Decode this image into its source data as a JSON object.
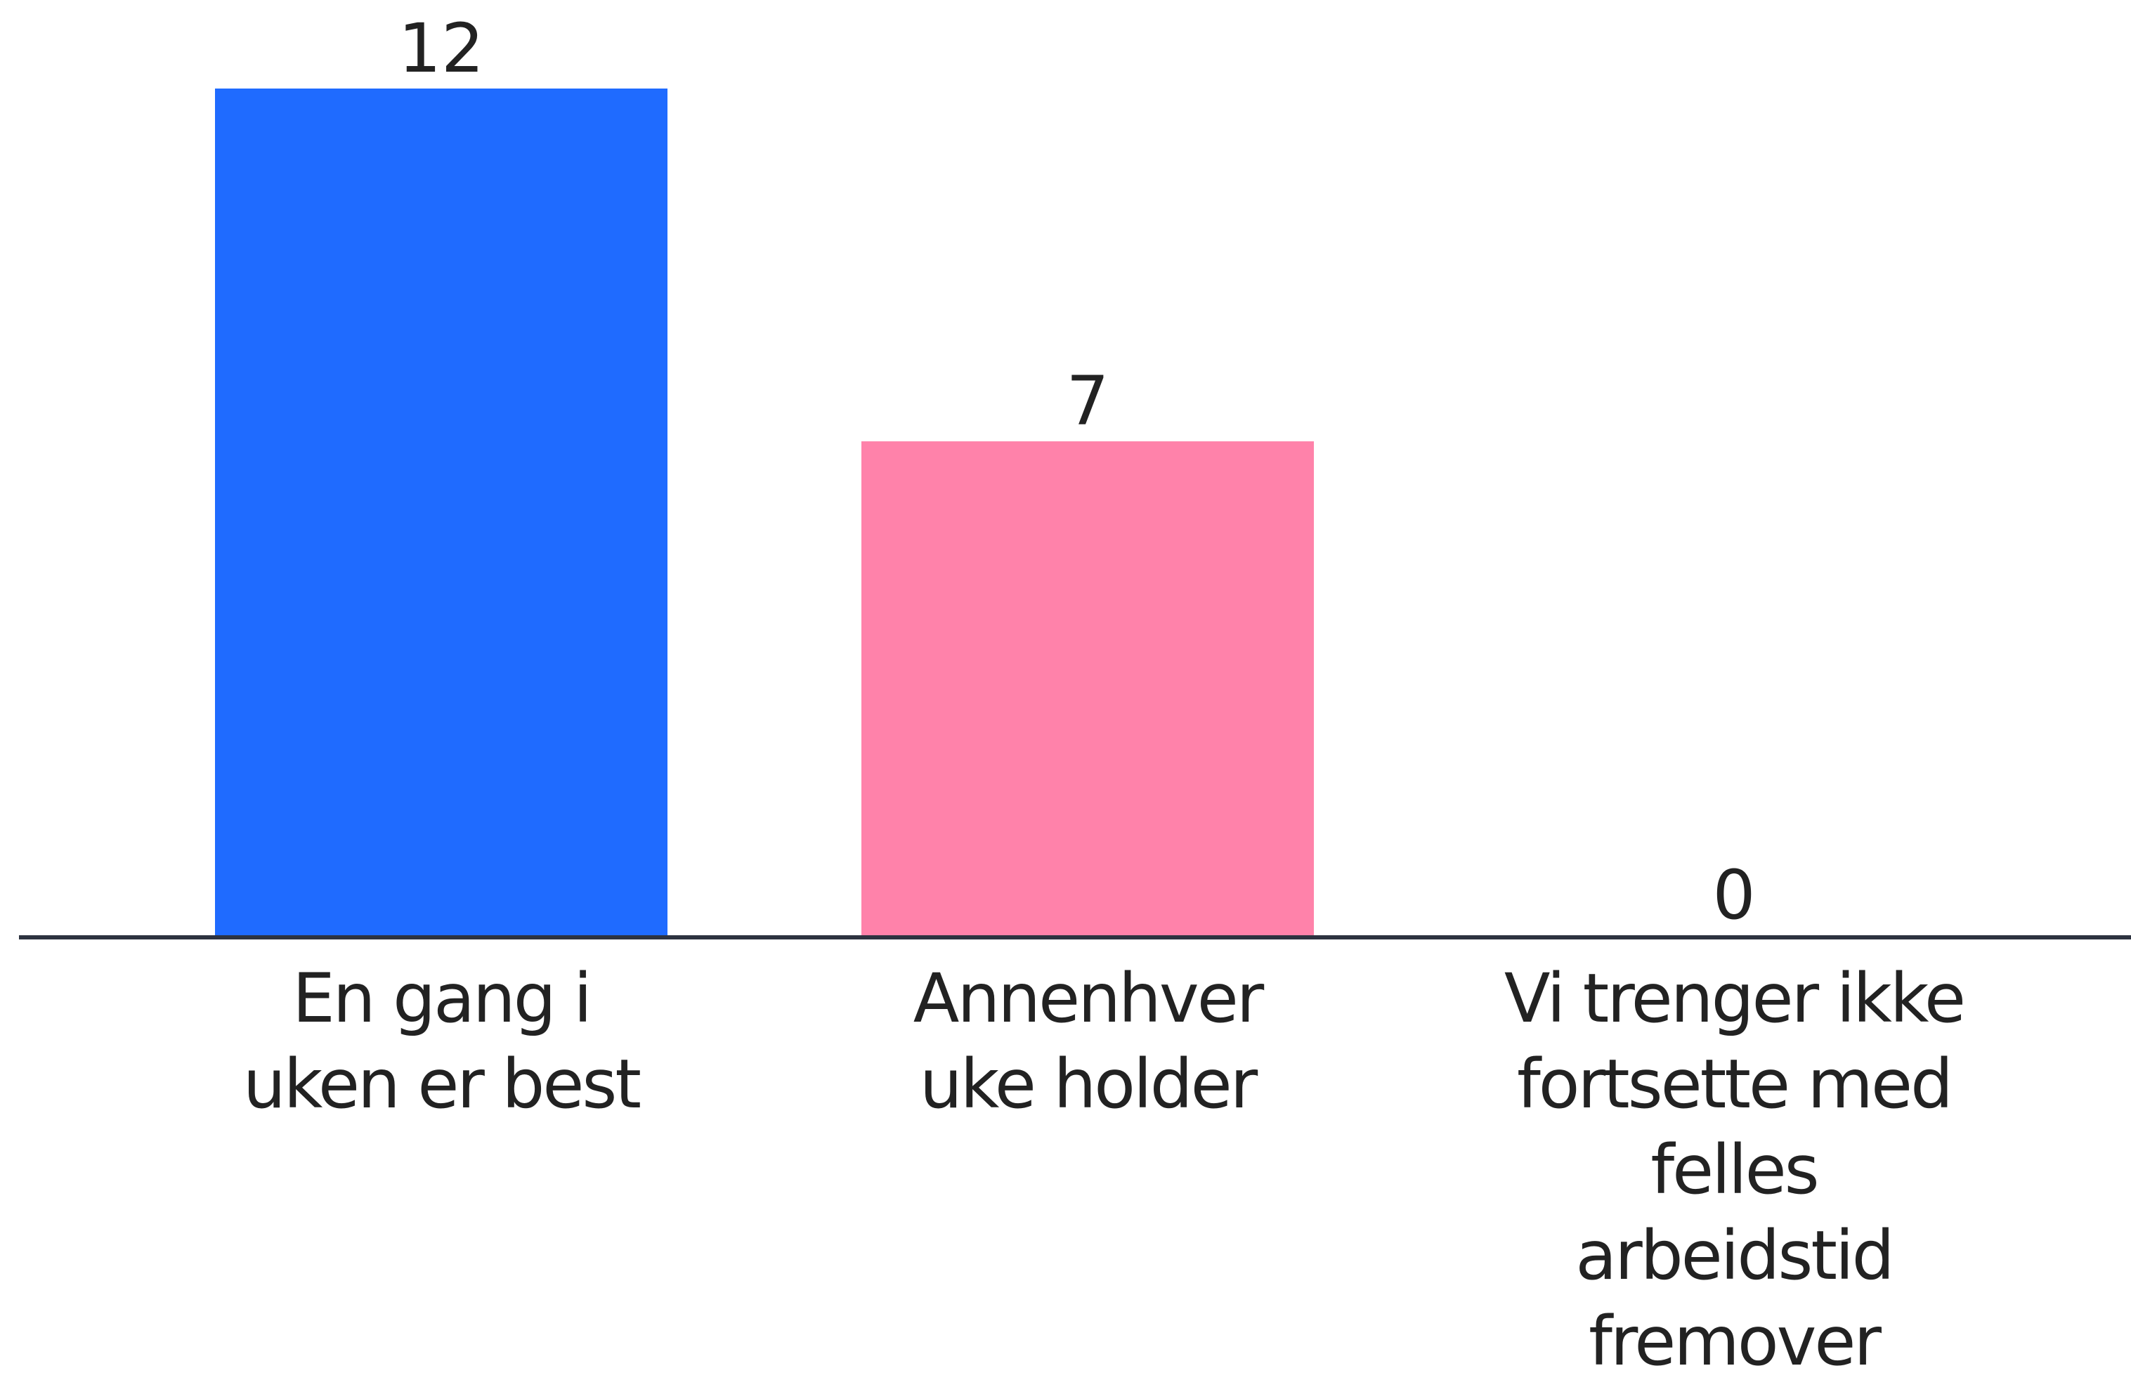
{
  "chart_data": {
    "type": "bar",
    "categories": [
      "En gang i uken er best",
      "Annenhver uke holder",
      "Vi trenger ikke fortsette med felles arbeidstid fremover"
    ],
    "values": [
      12,
      7,
      0
    ],
    "colors": [
      "#1f6bff",
      "#ff82aa",
      "#1f6bff"
    ],
    "ylim": [
      0,
      12
    ]
  }
}
